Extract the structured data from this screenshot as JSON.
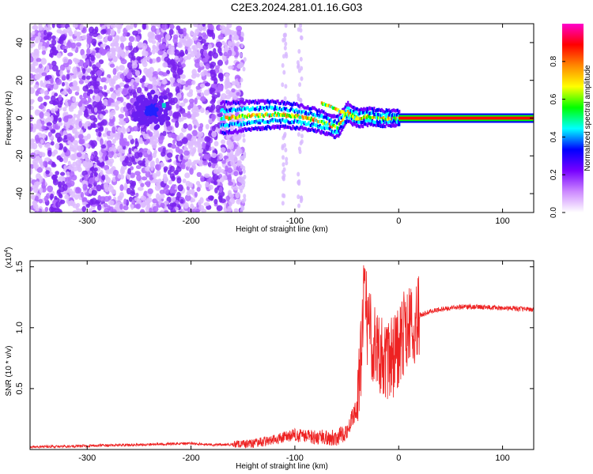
{
  "title": "C2E3.2024.281.01.16.G03",
  "chart_data": [
    {
      "type": "heatmap",
      "xlabel": "Height of straight line (km)",
      "ylabel": "Frequency (Hz)",
      "xlim": [
        -355,
        130
      ],
      "ylim": [
        -50,
        50
      ],
      "xticks": [
        -300,
        -200,
        -100,
        0,
        100
      ],
      "xtick_labels": [
        "-300",
        "-200",
        "-100",
        "0",
        "100"
      ],
      "yticks": [
        -40,
        -20,
        0,
        20,
        40
      ],
      "ytick_labels": [
        "-40",
        "-20",
        "0",
        "20",
        "40"
      ],
      "colorbar": {
        "label": "Normalized spectral amplitude",
        "range": [
          0,
          1
        ],
        "ticks": [
          0.0,
          0.2,
          0.4,
          0.6,
          0.8
        ],
        "tick_labels": [
          "0.0",
          "0.2",
          "0.4",
          "0.6",
          "0.8"
        ],
        "colors": [
          "#ffffff",
          "#cc88ff",
          "#7700ff",
          "#0000ff",
          "#00ffff",
          "#00ff00",
          "#ffff00",
          "#ff8800",
          "#ff0000",
          "#ff00cc"
        ]
      },
      "features": [
        {
          "name": "noise",
          "x_range": [
            -355,
            -150
          ],
          "freq_range": [
            -50,
            50
          ],
          "level": 0.12
        },
        {
          "name": "blob",
          "x_center": -238,
          "freq_center": 4,
          "level": 0.25
        },
        {
          "name": "signal_trace",
          "points": [
            [
              -170,
              0
            ],
            [
              -150,
              1
            ],
            [
              -120,
              2
            ],
            [
              -100,
              1
            ],
            [
              -80,
              -1
            ],
            [
              -60,
              -5
            ],
            [
              -50,
              3
            ],
            [
              -40,
              0
            ],
            [
              -30,
              1
            ],
            [
              -20,
              0
            ],
            [
              0,
              0
            ]
          ],
          "level": 0.5
        },
        {
          "name": "carrier_line",
          "x_range": [
            0,
            130
          ],
          "freq": 0,
          "level": 0.9
        }
      ]
    },
    {
      "type": "line",
      "xlabel": "Height of straight line (km)",
      "ylabel": "SNR (10 * v/v)",
      "y_multiplier": "(x10",
      "y_multiplier_exp": "4",
      "y_multiplier_close": ")",
      "xlim": [
        -355,
        130
      ],
      "ylim": [
        0,
        1.55
      ],
      "xticks": [
        -300,
        -200,
        -100,
        0,
        100
      ],
      "xtick_labels": [
        "-300",
        "-200",
        "-100",
        "0",
        "100"
      ],
      "yticks": [
        0.5,
        1.0,
        1.5
      ],
      "ytick_labels": [
        "0.5",
        "1.0",
        "1.5"
      ],
      "series": [
        {
          "color": "#ee2222",
          "x": [
            -355,
            -300,
            -250,
            -200,
            -180,
            -160,
            -140,
            -120,
            -100,
            -80,
            -60,
            -50,
            -40,
            -35,
            -33,
            -30,
            -25,
            -20,
            -15,
            -10,
            -5,
            0,
            5,
            10,
            15,
            20,
            30,
            40,
            60,
            80,
            100,
            130
          ],
          "y": [
            0.02,
            0.03,
            0.04,
            0.05,
            0.04,
            0.04,
            0.05,
            0.08,
            0.12,
            0.1,
            0.1,
            0.15,
            0.35,
            0.9,
            1.52,
            1.0,
            0.9,
            0.85,
            0.75,
            0.7,
            0.78,
            0.85,
            0.95,
            1.0,
            1.05,
            1.1,
            1.13,
            1.15,
            1.17,
            1.17,
            1.16,
            1.15
          ]
        }
      ]
    }
  ]
}
